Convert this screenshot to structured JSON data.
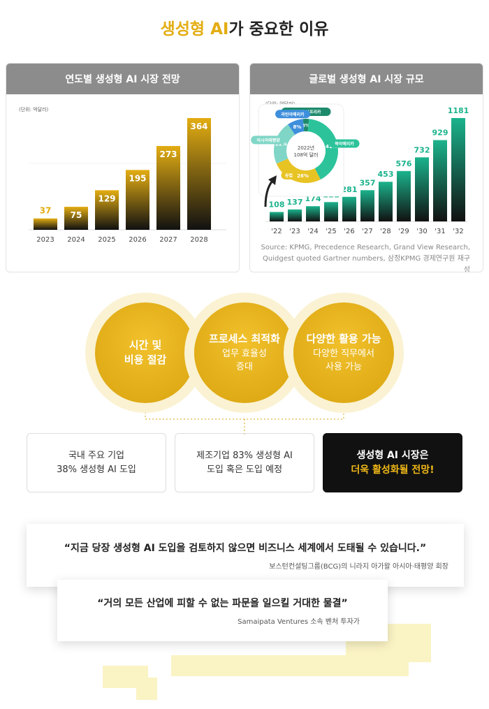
{
  "title_highlight": "생성형 AI",
  "title_rest": "가 중요한 이유",
  "chart_data": [
    {
      "type": "bar",
      "title": "연도별 생성형 AI 시장 전망",
      "unit": "(단위: 억달러)",
      "categories": [
        "2023",
        "2024",
        "2025",
        "2026",
        "2027",
        "2028"
      ],
      "values": [
        37,
        75,
        129,
        195,
        273,
        364
      ],
      "color": "#e3ad12"
    },
    {
      "type": "bar",
      "title": "글로벌 생성형 AI 시장 규모",
      "unit": "(단위: 억달러)",
      "categories": [
        "'22",
        "'23",
        "'24",
        "'25",
        "'26",
        "'27",
        "'28",
        "'29",
        "'30",
        "'31",
        "'32"
      ],
      "values": [
        108,
        137,
        174,
        221,
        281,
        357,
        453,
        576,
        732,
        929,
        1181
      ],
      "color": "#1bb38c",
      "source": "Source: KPMG, Precedence Research, Grand View Research, Quidgest quoted Gartner numbers, 삼정KPMG 경제연구원 재구성",
      "inset": {
        "type": "pie",
        "center_label": [
          "2022년",
          "108억 달러"
        ],
        "categories": [
          "중동 및 아프리카",
          "북아메리카",
          "유럽",
          "아시아태평양",
          "라틴아메리카"
        ],
        "values": [
          3,
          41,
          26,
          22,
          8
        ],
        "value_labels": [
          "3%",
          "41%",
          "26%",
          "22%",
          "8%"
        ],
        "colors": [
          "#1d8a6c",
          "#2cc39b",
          "#e8c324",
          "#7fd6c6",
          "#3d8fdc"
        ]
      }
    }
  ],
  "circles": [
    {
      "title": "시간 및\n비용 절감"
    },
    {
      "title": "프로세스 최적화",
      "text": "업무 효율성\n증대"
    },
    {
      "title": "다양한 활용 가능",
      "text": "다양한 직무에서\n사용 가능"
    }
  ],
  "boxes": [
    {
      "text": "국내 주요 기업\n38% 생성형 AI 도입"
    },
    {
      "text": "제조기업 83% 생성형 AI\n도입 혹은 도입 예정"
    },
    {
      "text": "생성형 AI 시장은",
      "highlight": "더욱 활성화될 전망!"
    }
  ],
  "quotes": [
    {
      "text": "“지금 당장 생성형 AI 도입을 검토하지 않으면 비즈니스 세계에서 도태될 수 있습니다.”",
      "source": "보스턴컨설팅그룹(BCG)의 니라지 아가왈 아시아·태평양 회장"
    },
    {
      "text": "“거의 모든 산업에 피할 수 없는 파문을 일으킬 거대한 물결”",
      "source": "Samaipata Ventures 소속 벤처 투자가"
    }
  ]
}
